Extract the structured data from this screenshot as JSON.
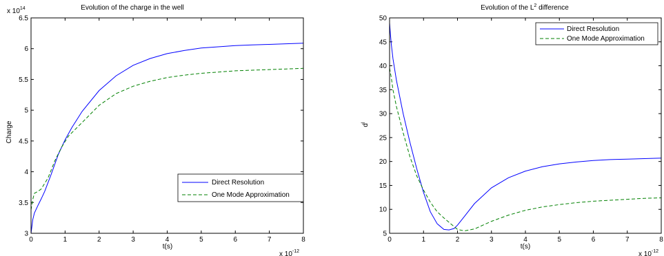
{
  "chart_data": [
    {
      "type": "line",
      "title": "Evolution of the charge in the well",
      "xlabel": "t(s)",
      "ylabel": "Charge",
      "x_multiplier": "x 10",
      "x_multiplier_exp": "-12",
      "y_multiplier": "x 10",
      "y_multiplier_exp": "14",
      "xlim": [
        0,
        8
      ],
      "ylim": [
        3,
        6.5
      ],
      "xticks": [
        "0",
        "1",
        "2",
        "3",
        "4",
        "5",
        "6",
        "7",
        "8"
      ],
      "yticks": [
        "3",
        "3.5",
        "4",
        "4.5",
        "5",
        "5.5",
        "6",
        "6.5"
      ],
      "legend_position": "lower-right",
      "series": [
        {
          "name": "Direct Resolution",
          "color": "#0000ff",
          "dash": "solid",
          "x": [
            0,
            0.05,
            0.1,
            0.2,
            0.3,
            0.4,
            0.6,
            0.8,
            1.0,
            1.2,
            1.5,
            2.0,
            2.5,
            3.0,
            3.5,
            4.0,
            4.5,
            5.0,
            5.5,
            6.0,
            6.5,
            7.0,
            7.5,
            8.0
          ],
          "y": [
            3.0,
            3.22,
            3.33,
            3.45,
            3.56,
            3.68,
            3.97,
            4.28,
            4.52,
            4.72,
            4.98,
            5.32,
            5.56,
            5.73,
            5.84,
            5.92,
            5.97,
            6.01,
            6.03,
            6.05,
            6.06,
            6.07,
            6.08,
            6.09
          ]
        },
        {
          "name": "One Mode Approximation",
          "color": "#008000",
          "dash": "dashed",
          "x": [
            0,
            0.05,
            0.1,
            0.2,
            0.3,
            0.5,
            0.7,
            0.9,
            1.1,
            1.5,
            2.0,
            2.5,
            3.0,
            3.5,
            4.0,
            4.5,
            5.0,
            5.5,
            6.0,
            6.5,
            7.0,
            7.5,
            8.0
          ],
          "y": [
            3.38,
            3.55,
            3.65,
            3.68,
            3.72,
            3.9,
            4.18,
            4.4,
            4.58,
            4.8,
            5.08,
            5.27,
            5.39,
            5.47,
            5.53,
            5.57,
            5.6,
            5.62,
            5.64,
            5.65,
            5.66,
            5.67,
            5.68
          ]
        }
      ]
    },
    {
      "type": "line",
      "title": "Evolution of the L",
      "title_sup": "2",
      "title_rest": " difference",
      "xlabel": "t(s)",
      "ylabel": "d",
      "ylabel_sup": "l",
      "x_multiplier": "x 10",
      "x_multiplier_exp": "-12",
      "xlim": [
        0,
        8
      ],
      "ylim": [
        5,
        50
      ],
      "xticks": [
        "0",
        "1",
        "2",
        "3",
        "4",
        "5",
        "6",
        "7",
        "8"
      ],
      "yticks": [
        "5",
        "10",
        "15",
        "20",
        "25",
        "30",
        "35",
        "40",
        "45",
        "50"
      ],
      "legend_position": "top-right",
      "series": [
        {
          "name": "Direct Resolution",
          "color": "#0000ff",
          "dash": "solid",
          "x": [
            0,
            0.02,
            0.05,
            0.1,
            0.2,
            0.4,
            0.6,
            0.8,
            1.0,
            1.2,
            1.4,
            1.6,
            1.75,
            1.9,
            2.0,
            2.2,
            2.5,
            3.0,
            3.5,
            4.0,
            4.5,
            5.0,
            5.5,
            6.0,
            6.5,
            7.0,
            7.5,
            8.0
          ],
          "y": [
            49,
            47,
            44.5,
            41.5,
            37,
            30,
            24,
            18.5,
            13.5,
            9.5,
            7.0,
            5.8,
            5.7,
            6.0,
            6.7,
            8.5,
            11.2,
            14.5,
            16.6,
            18.0,
            18.9,
            19.5,
            19.9,
            20.2,
            20.4,
            20.5,
            20.6,
            20.7
          ]
        },
        {
          "name": "One Mode Approximation",
          "color": "#008000",
          "dash": "dashed",
          "x": [
            0,
            0.05,
            0.1,
            0.2,
            0.4,
            0.6,
            0.8,
            1.0,
            1.2,
            1.4,
            1.6,
            1.8,
            2.0,
            2.2,
            2.5,
            3.0,
            3.5,
            4.0,
            4.5,
            5.0,
            5.5,
            6.0,
            6.5,
            7.0,
            7.5,
            8.0
          ],
          "y": [
            39.5,
            37.5,
            35,
            31.5,
            26,
            21,
            17,
            14,
            11.5,
            9.5,
            8.2,
            7.0,
            5.8,
            5.5,
            5.9,
            7.5,
            8.8,
            9.8,
            10.5,
            11.0,
            11.4,
            11.7,
            11.9,
            12.1,
            12.3,
            12.4
          ]
        }
      ]
    }
  ]
}
